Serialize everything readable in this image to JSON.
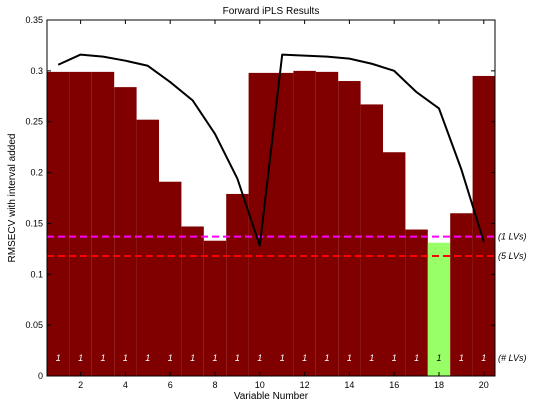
{
  "chart_data": {
    "type": "bar",
    "title": "Forward iPLS Results",
    "xlabel": "Variable Number",
    "ylabel": "RMSECV with interval added",
    "xlim": [
      0.5,
      20.5
    ],
    "ylim": [
      0,
      0.35
    ],
    "x_ticks": [
      2,
      4,
      6,
      8,
      10,
      12,
      14,
      16,
      18,
      20
    ],
    "y_ticks": [
      0,
      0.05,
      0.1,
      0.15,
      0.2,
      0.25,
      0.3,
      0.35
    ],
    "y_tick_labels": [
      "0",
      "0.05",
      "0.1",
      "0.15",
      "0.2",
      "0.25",
      "0.3",
      "0.35"
    ],
    "categories": [
      1,
      2,
      3,
      4,
      5,
      6,
      7,
      8,
      9,
      10,
      11,
      12,
      13,
      14,
      15,
      16,
      17,
      18,
      19,
      20
    ],
    "values": [
      0.299,
      0.299,
      0.299,
      0.284,
      0.252,
      0.191,
      0.147,
      0.133,
      0.179,
      0.298,
      0.298,
      0.3,
      0.299,
      0.29,
      0.267,
      0.22,
      0.144,
      0.131,
      0.16,
      0.295
    ],
    "lv_labels": [
      "1",
      "1",
      "1",
      "1",
      "1",
      "1",
      "1",
      "1",
      "1",
      "1",
      "1",
      "1",
      "1",
      "1",
      "1",
      "1",
      "1",
      "1",
      "1",
      "1"
    ],
    "highlight_index": 17,
    "bar_color": "#800000",
    "highlight_color": "#99ff66",
    "curve": {
      "color": "#000000",
      "x": [
        1,
        2,
        3,
        4,
        5,
        6,
        7,
        8,
        9,
        10,
        10,
        11,
        12,
        13,
        14,
        15,
        16,
        17,
        18,
        19,
        20
      ],
      "y": [
        0.306,
        0.316,
        0.314,
        0.31,
        0.305,
        0.289,
        0.271,
        0.238,
        0.194,
        0.128,
        0.128,
        0.316,
        0.315,
        0.314,
        0.312,
        0.307,
        0.3,
        0.279,
        0.263,
        0.203,
        0.132
      ]
    },
    "reference_lines": [
      {
        "y": 0.137,
        "label": "(1 LVs)",
        "color": "#ff00ff"
      },
      {
        "y": 0.118,
        "label": "(5 LVs)",
        "color": "#ff0000"
      }
    ],
    "lv_axis_label": "(# LVs)",
    "grid": false
  }
}
